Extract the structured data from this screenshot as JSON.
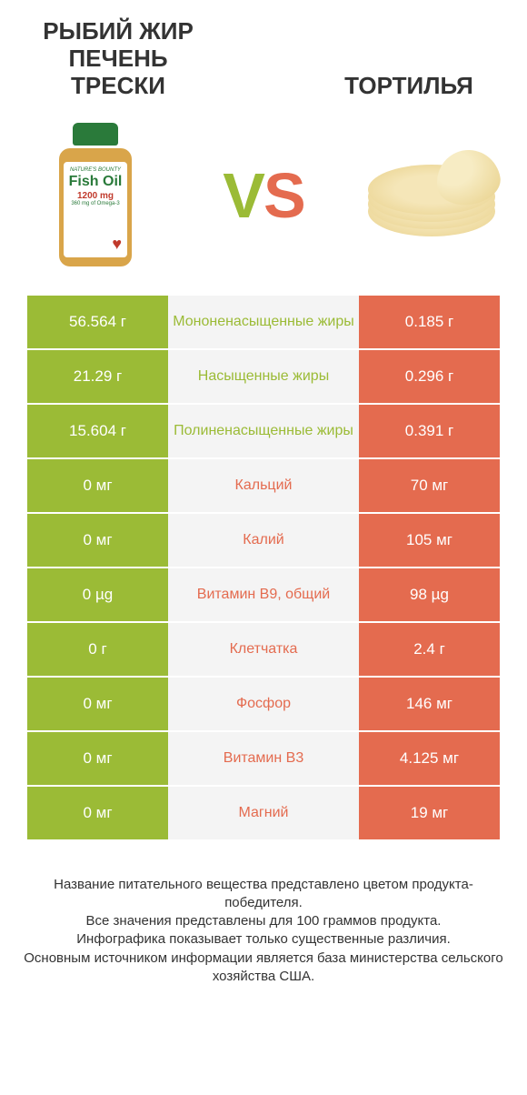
{
  "header": {
    "left_title": "РЫБИЙ ЖИР ПЕЧЕНЬ ТРЕСКИ",
    "right_title": "ТОРТИЛЬЯ",
    "vs": "VS"
  },
  "bottle": {
    "brand": "NATURE'S BOUNTY",
    "main": "Fish Oil",
    "dose": "1200 mg",
    "sub": "360 mg of Omega-3"
  },
  "colors": {
    "green": "#9bbb36",
    "orange": "#e46b4f",
    "grey_bg": "#f4f4f4"
  },
  "rows": [
    {
      "left": "56.564 г",
      "label": "Мононенасыщенные жиры",
      "right": "0.185 г",
      "winner": "left"
    },
    {
      "left": "21.29 г",
      "label": "Насыщенные жиры",
      "right": "0.296 г",
      "winner": "left"
    },
    {
      "left": "15.604 г",
      "label": "Полиненасыщенные жиры",
      "right": "0.391 г",
      "winner": "left"
    },
    {
      "left": "0 мг",
      "label": "Кальций",
      "right": "70 мг",
      "winner": "right"
    },
    {
      "left": "0 мг",
      "label": "Калий",
      "right": "105 мг",
      "winner": "right"
    },
    {
      "left": "0 µg",
      "label": "Витамин B9, общий",
      "right": "98 µg",
      "winner": "right"
    },
    {
      "left": "0 г",
      "label": "Клетчатка",
      "right": "2.4 г",
      "winner": "right"
    },
    {
      "left": "0 мг",
      "label": "Фосфор",
      "right": "146 мг",
      "winner": "right"
    },
    {
      "left": "0 мг",
      "label": "Витамин B3",
      "right": "4.125 мг",
      "winner": "right"
    },
    {
      "left": "0 мг",
      "label": "Магний",
      "right": "19 мг",
      "winner": "right"
    }
  ],
  "footer": {
    "line1": "Название питательного вещества представлено цветом продукта-победителя.",
    "line2": "Все значения представлены для 100 граммов продукта.",
    "line3": "Инфографика показывает только существенные различия.",
    "line4": "Основным источником информации является база министерства сельского хозяйства США."
  }
}
